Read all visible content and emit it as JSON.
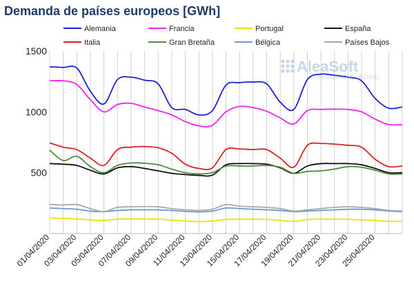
{
  "chart_data": {
    "type": "line",
    "title": "Demanda de países europeos [GWh]",
    "xlabel": "",
    "ylabel": "",
    "ylim": [
      0,
      1500
    ],
    "yticks": [
      500,
      1000,
      1500
    ],
    "grid": "vertical",
    "legend": "top",
    "x": [
      "01/04/2020",
      "02/04/2020",
      "03/04/2020",
      "04/04/2020",
      "05/04/2020",
      "06/04/2020",
      "07/04/2020",
      "08/04/2020",
      "09/04/2020",
      "10/04/2020",
      "11/04/2020",
      "12/04/2020",
      "13/04/2020",
      "14/04/2020",
      "15/04/2020",
      "16/04/2020",
      "17/04/2020",
      "18/04/2020",
      "19/04/2020",
      "20/04/2020",
      "21/04/2020",
      "22/04/2020",
      "23/04/2020",
      "24/04/2020",
      "25/04/2020",
      "26/04/2020",
      "27/04/2020"
    ],
    "xtick_labels": [
      "01/04/2020",
      "03/04/2020",
      "05/04/2020",
      "07/04/2020",
      "09/04/2020",
      "11/04/2020",
      "13/04/2020",
      "15/04/2020",
      "17/04/2020",
      "19/04/2020",
      "21/04/2020",
      "23/04/2020",
      "25/04/2020"
    ],
    "series": [
      {
        "name": "Alemania",
        "color": "#1f1fd6",
        "values": [
          1370,
          1365,
          1360,
          1170,
          1065,
          1265,
          1285,
          1260,
          1230,
          1035,
          1020,
          975,
          1010,
          1220,
          1240,
          1245,
          1230,
          1080,
          1020,
          1265,
          1310,
          1300,
          1285,
          1255,
          1110,
          1030,
          1040
        ]
      },
      {
        "name": "Francia",
        "color": "#ee22ee",
        "values": [
          1255,
          1255,
          1225,
          1100,
          1000,
          1060,
          1070,
          1040,
          1010,
          975,
          920,
          885,
          890,
          1000,
          1045,
          1035,
          1005,
          950,
          900,
          1010,
          1020,
          1022,
          1020,
          1000,
          940,
          895,
          895
        ]
      },
      {
        "name": "Portugal",
        "color": "#e6e600",
        "values": [
          128,
          125,
          120,
          112,
          108,
          118,
          120,
          120,
          118,
          110,
          103,
          98,
          103,
          116,
          118,
          118,
          116,
          108,
          100,
          115,
          118,
          118,
          117,
          113,
          108,
          100,
          100
        ]
      },
      {
        "name": "España",
        "color": "#111111",
        "values": [
          575,
          570,
          560,
          520,
          490,
          540,
          550,
          535,
          515,
          495,
          485,
          478,
          480,
          565,
          575,
          575,
          570,
          540,
          495,
          555,
          575,
          575,
          575,
          565,
          535,
          500,
          500
        ]
      },
      {
        "name": "Italia",
        "color": "#e02020",
        "values": [
          745,
          710,
          690,
          620,
          560,
          690,
          710,
          715,
          705,
          660,
          570,
          535,
          540,
          690,
          695,
          690,
          690,
          620,
          545,
          725,
          740,
          735,
          725,
          710,
          610,
          550,
          555
        ]
      },
      {
        "name": "Gran Bretaña",
        "color": "#4e8a3a",
        "values": [
          685,
          600,
          635,
          550,
          500,
          560,
          580,
          578,
          565,
          530,
          500,
          490,
          500,
          555,
          555,
          555,
          560,
          545,
          495,
          510,
          515,
          530,
          550,
          545,
          520,
          490,
          490
        ]
      },
      {
        "name": "Bélgica",
        "color": "#6b9bd1",
        "values": [
          210,
          205,
          200,
          185,
          180,
          190,
          195,
          195,
          195,
          190,
          182,
          178,
          185,
          210,
          205,
          200,
          195,
          190,
          180,
          185,
          190,
          195,
          200,
          200,
          195,
          185,
          180
        ]
      },
      {
        "name": "Países Bajos",
        "color": "#a8a8a8",
        "values": [
          240,
          235,
          238,
          205,
          180,
          215,
          220,
          222,
          220,
          205,
          195,
          190,
          200,
          238,
          225,
          220,
          215,
          205,
          185,
          195,
          205,
          215,
          220,
          215,
          205,
          190,
          185
        ]
      }
    ]
  },
  "logo": {
    "brand": "AleaSoft",
    "tagline": "ENERGY FORECASTING"
  }
}
